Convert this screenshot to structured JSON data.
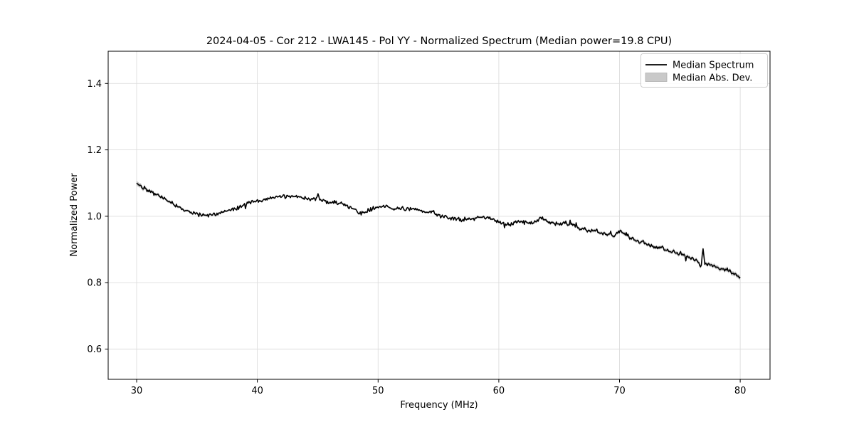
{
  "chart_data": {
    "type": "line",
    "title": "2024-04-05 - Cor 212 - LWA145 - Pol YY - Normalized Spectrum (Median power=19.8 CPU)",
    "xlabel": "Frequency (MHz)",
    "ylabel": "Normalized Power",
    "xlim": [
      27.64,
      82.47
    ],
    "ylim": [
      0.509,
      1.497
    ],
    "x_ticks": [
      30,
      40,
      50,
      60,
      70,
      80
    ],
    "x_tick_labels": [
      "30",
      "40",
      "50",
      "60",
      "70",
      "80"
    ],
    "y_ticks": [
      0.6,
      0.8,
      1.0,
      1.2,
      1.4
    ],
    "y_tick_labels": [
      "0.6",
      "0.8",
      "1.0",
      "1.2",
      "1.4"
    ],
    "grid": true,
    "legend": {
      "position": "upper right",
      "entries": [
        {
          "label": "Median Spectrum",
          "kind": "line",
          "color": "#000000"
        },
        {
          "label": "Median Abs. Dev.",
          "kind": "band",
          "color": "#c9c9c9"
        }
      ]
    },
    "series": [
      {
        "name": "Median Spectrum",
        "kind": "line",
        "color": "#000000",
        "x_start": 30.0,
        "x_step": 0.5,
        "x_end": 80.0,
        "y": [
          1.1,
          1.088,
          1.078,
          1.068,
          1.058,
          1.048,
          1.038,
          1.028,
          1.018,
          1.01,
          1.006,
          1.004,
          1.005,
          1.007,
          1.01,
          1.014,
          1.02,
          1.028,
          1.036,
          1.044,
          1.046,
          1.05,
          1.055,
          1.058,
          1.057,
          1.06,
          1.061,
          1.057,
          1.053,
          1.051,
          1.052,
          1.046,
          1.044,
          1.041,
          1.037,
          1.03,
          1.022,
          1.008,
          1.012,
          1.022,
          1.028,
          1.028,
          1.025,
          1.023,
          1.024,
          1.022,
          1.021,
          1.017,
          1.012,
          1.014,
          1.002,
          0.997,
          0.994,
          0.991,
          0.99,
          0.994,
          0.992,
          1.0,
          0.996,
          0.99,
          0.982,
          0.978,
          0.977,
          0.984,
          0.982,
          0.979,
          0.983,
          0.997,
          0.985,
          0.979,
          0.977,
          0.98,
          0.974,
          0.966,
          0.963,
          0.956,
          0.955,
          0.95,
          0.945,
          0.94,
          0.956,
          0.946,
          0.931,
          0.925,
          0.92,
          0.914,
          0.908,
          0.905,
          0.898,
          0.894,
          0.888,
          0.88,
          0.874,
          0.864,
          0.857,
          0.853,
          0.849,
          0.842,
          0.838,
          0.828,
          0.814
        ]
      },
      {
        "name": "Median Abs. Dev.",
        "kind": "band_halfwidth",
        "color": "#c6c6c6",
        "anchors": [
          [
            30,
            0.007
          ],
          [
            31,
            0.005
          ],
          [
            33,
            0.004
          ],
          [
            36,
            0.003
          ],
          [
            45,
            0.0025
          ],
          [
            55,
            0.0028
          ],
          [
            60,
            0.0032
          ],
          [
            65,
            0.004
          ],
          [
            70,
            0.0048
          ],
          [
            74,
            0.005
          ],
          [
            77,
            0.0055
          ],
          [
            80,
            0.0065
          ]
        ]
      }
    ],
    "spikes": [
      {
        "x": 45.0,
        "value": 1.068
      },
      {
        "x": 76.72,
        "value": 0.848
      },
      {
        "x": 76.9,
        "value": 0.902
      }
    ],
    "noise_sigma": 0.0035,
    "colors": {
      "line": "#000000",
      "band": "#c6c6c6",
      "grid": "#dddddd",
      "spine": "#000000",
      "background": "#ffffff",
      "legend_border": "#cccccc"
    }
  }
}
